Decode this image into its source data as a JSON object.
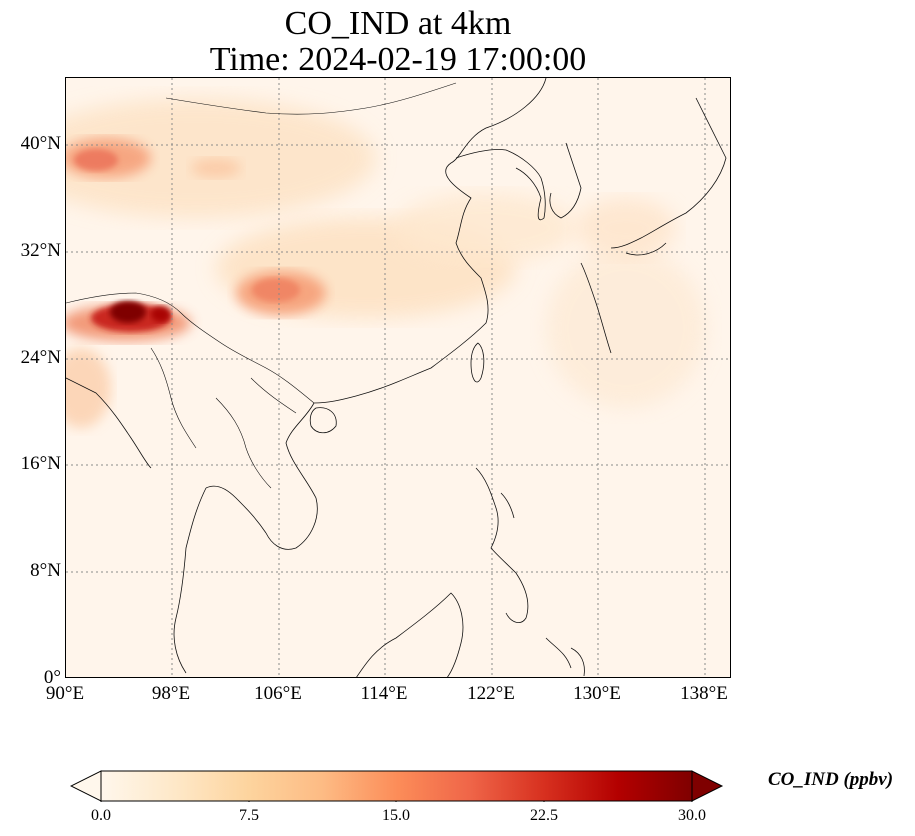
{
  "title": {
    "line1": "CO_IND at 4km",
    "line2": "Time: 2024-02-19 17:00:00"
  },
  "map": {
    "variable": "CO_IND",
    "lon_range": [
      90,
      140
    ],
    "lat_range": [
      0,
      45
    ],
    "gridlines": true,
    "lat_ticks": [
      "0°",
      "8°N",
      "16°N",
      "24°N",
      "32°N",
      "40°N"
    ],
    "lon_ticks": [
      "90°E",
      "98°E",
      "106°E",
      "114°E",
      "122°E",
      "130°E",
      "138°E"
    ],
    "background_color": "#fff5eb",
    "coastline_color": "#000000"
  },
  "colorbar": {
    "label": "CO_IND (ppbv)",
    "min": 0.0,
    "max": 30.0,
    "ticks": [
      "0.0",
      "7.5",
      "15.0",
      "22.5",
      "30.0"
    ],
    "colormap": "OrRd",
    "colors": [
      "#fff7ec",
      "#fee8c8",
      "#fdd49e",
      "#fdbb84",
      "#fc8d59",
      "#ef6548",
      "#d7301f",
      "#b30000",
      "#7f0000"
    ]
  }
}
